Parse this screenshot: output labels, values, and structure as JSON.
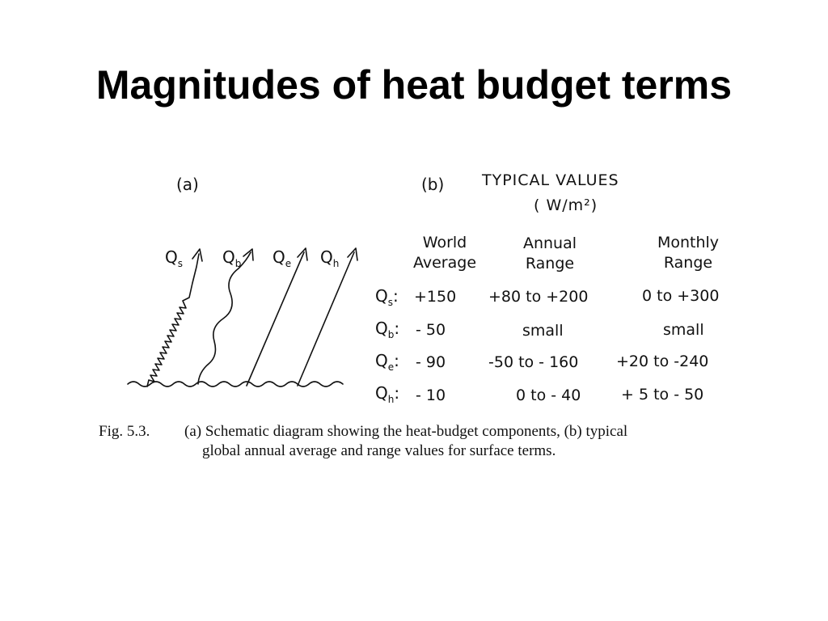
{
  "slide": {
    "title": "Magnitudes of heat budget terms"
  },
  "panel_a": {
    "label": "(a)",
    "arrows": [
      {
        "symbol": "Q",
        "sub": "s"
      },
      {
        "symbol": "Q",
        "sub": "b"
      },
      {
        "symbol": "Q",
        "sub": "e"
      },
      {
        "symbol": "Q",
        "sub": "h"
      }
    ]
  },
  "panel_b": {
    "label": "(b)",
    "heading": "TYPICAL VALUES",
    "units": "( W/m²)",
    "columns": [
      {
        "line1": "World",
        "line2": "Average"
      },
      {
        "line1": "Annual",
        "line2": "Range"
      },
      {
        "line1": "Monthly",
        "line2": "Range"
      }
    ],
    "rows": [
      {
        "symbol": "Q",
        "sub": "s",
        "colon": ":",
        "world_average": "+150",
        "annual_range": "+80 to +200",
        "monthly_range": "0 to +300"
      },
      {
        "symbol": "Q",
        "sub": "b",
        "colon": ":",
        "world_average": "- 50",
        "annual_range": "small",
        "monthly_range": "small"
      },
      {
        "symbol": "Q",
        "sub": "e",
        "colon": ":",
        "world_average": "- 90",
        "annual_range": "-50 to - 160",
        "monthly_range": "+20 to -240"
      },
      {
        "symbol": "Q",
        "sub": "h",
        "colon": ":",
        "world_average": "- 10",
        "annual_range": "0 to - 40",
        "monthly_range": "+ 5 to - 50"
      }
    ]
  },
  "caption": {
    "fig_label": "Fig. 5.3.",
    "line1": "(a) Schematic diagram showing the heat-budget components, (b) typical",
    "line2": "global annual average and range values for surface terms."
  }
}
